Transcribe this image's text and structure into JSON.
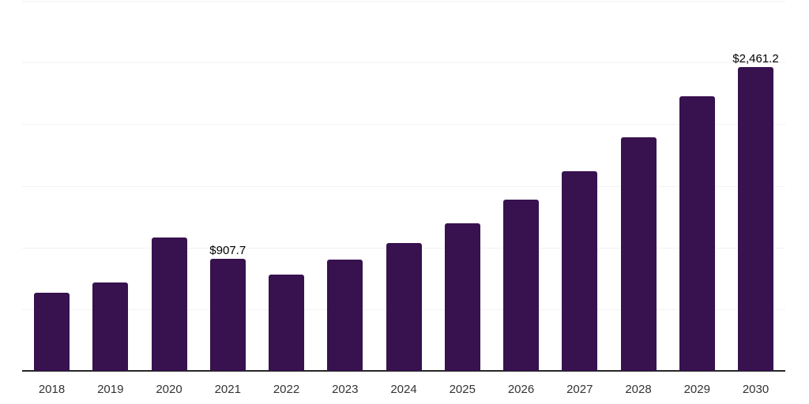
{
  "chart_data": {
    "type": "bar",
    "title": "",
    "xlabel": "",
    "ylabel": "",
    "categories": [
      "2018",
      "2019",
      "2020",
      "2021",
      "2022",
      "2023",
      "2024",
      "2025",
      "2026",
      "2027",
      "2028",
      "2029",
      "2030"
    ],
    "values": [
      633,
      716,
      1080,
      907.7,
      783,
      900,
      1036,
      1196,
      1387,
      1617,
      1892,
      2225,
      2461.2
    ],
    "data_labels": [
      "",
      "",
      "",
      "$907.7",
      "",
      "",
      "",
      "",
      "",
      "",
      "",
      "",
      "$2,461.2"
    ],
    "ylim": [
      0,
      3000
    ],
    "grid_step": 500,
    "grid": true,
    "legend_position": "none",
    "colors": {
      "bar": "#38114F",
      "gridline": "#f2f2f2",
      "axis_line": "#262626",
      "data_label": "#000000",
      "tick_label": "#333333",
      "background": "#ffffff"
    }
  }
}
